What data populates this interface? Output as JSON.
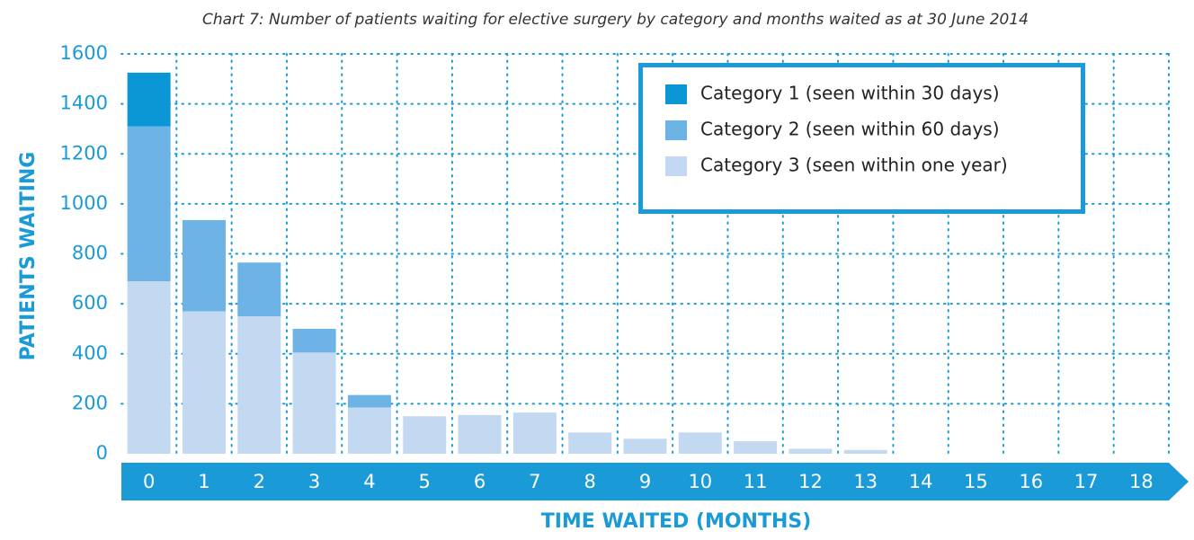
{
  "chart_data": {
    "type": "bar",
    "stacked": true,
    "title": "Chart 7: Number of patients waiting for elective surgery by category and months waited as at 30 June 2014",
    "xlabel": "TIME WAITED (MONTHS)",
    "ylabel": "PATIENTS WAITING",
    "categories": [
      "0",
      "1",
      "2",
      "3",
      "4",
      "5",
      "6",
      "7",
      "8",
      "9",
      "10",
      "11",
      "12",
      "13",
      "14",
      "15",
      "16",
      "17",
      "18"
    ],
    "series": [
      {
        "name": "Category 1 (seen within 30 days)",
        "color": "#0b96d5",
        "values": [
          215,
          0,
          0,
          0,
          0,
          0,
          0,
          0,
          0,
          0,
          0,
          0,
          0,
          0,
          0,
          0,
          0,
          0,
          0
        ]
      },
      {
        "name": "Category 2 (seen within 60 days)",
        "color": "#6db3e6",
        "values": [
          620,
          365,
          215,
          95,
          50,
          0,
          0,
          0,
          0,
          0,
          0,
          0,
          0,
          0,
          0,
          0,
          0,
          0,
          0
        ]
      },
      {
        "name": "Category 3 (seen within one year)",
        "color": "#c3d9f2",
        "values": [
          690,
          570,
          550,
          405,
          185,
          150,
          155,
          165,
          85,
          60,
          85,
          50,
          20,
          15,
          0,
          0,
          0,
          0,
          0
        ]
      }
    ],
    "ylim": [
      0,
      1600
    ],
    "yticks": [
      0,
      200,
      400,
      600,
      800,
      1000,
      1200,
      1400,
      1600
    ],
    "grid": true,
    "legend": "upper right"
  }
}
